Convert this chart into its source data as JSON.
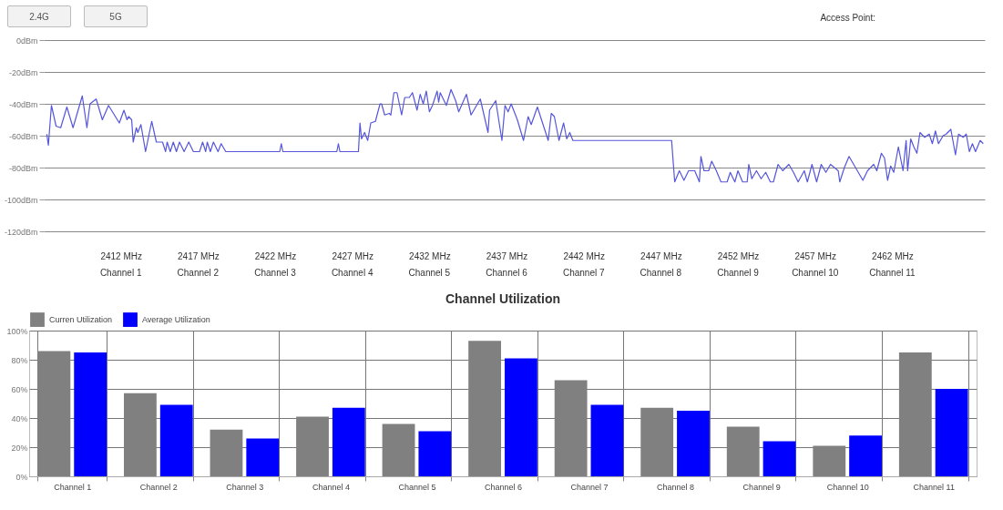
{
  "chart_data": [
    {
      "type": "other",
      "annotations": [
        "2.4G",
        "5G",
        "Access Point:"
      ]
    },
    {
      "type": "line",
      "xlim": [
        2407,
        2468
      ],
      "ylim": [
        -120,
        0
      ],
      "grid": "y",
      "xticks": [
        {
          "value": 2412,
          "label": "2412 MHz"
        },
        {
          "value": 2417,
          "label": "2417 MHz"
        },
        {
          "value": 2422,
          "label": "2422 MHz"
        },
        {
          "value": 2427,
          "label": "2427 MHz"
        },
        {
          "value": 2432,
          "label": "2432 MHz"
        },
        {
          "value": 2437,
          "label": "2437 MHz"
        },
        {
          "value": 2442,
          "label": "2442 MHz"
        },
        {
          "value": 2447,
          "label": "2447 MHz"
        },
        {
          "value": 2452,
          "label": "2452 MHz"
        },
        {
          "value": 2457,
          "label": "2457 MHz"
        },
        {
          "value": 2462,
          "label": "2462 MHz"
        }
      ],
      "annotations": [
        "Channel 1",
        "Channel 2",
        "Channel 3",
        "Channel 4",
        "Channel 5",
        "Channel 6",
        "Channel 7",
        "Channel 8",
        "Channel 9",
        "Channel 10",
        "Channel 11"
      ],
      "yticks": [
        {
          "value": 0,
          "label": "0dBm"
        },
        {
          "value": -20,
          "label": "-20dBm"
        },
        {
          "value": -40,
          "label": "-40dBm"
        },
        {
          "value": -60,
          "label": "-60dBm"
        },
        {
          "value": -80,
          "label": "-80dBm"
        },
        {
          "value": -100,
          "label": "-100dBm"
        },
        {
          "value": -120,
          "label": "-120dBm"
        }
      ],
      "x": [
        2407.2,
        2407.3,
        2407.5,
        2407.8,
        2408.1,
        2408.5,
        2408.9,
        2409.5,
        2409.8,
        2410.0,
        2410.4,
        2410.8,
        2411.2,
        2411.9,
        2412.2,
        2412.4,
        2412.5,
        2412.7,
        2412.8,
        2413.0,
        2413.1,
        2413.3,
        2413.6,
        2414.0,
        2414.3,
        2414.7,
        2414.9,
        2415.0,
        2415.2,
        2415.4,
        2415.6,
        2415.8,
        2416.1,
        2416.4,
        2416.7,
        2417.1,
        2417.3,
        2417.5,
        2417.6,
        2417.8,
        2418.0,
        2418.3,
        2418.5,
        2418.8,
        2422.3,
        2422.4,
        2422.5,
        2426.0,
        2426.1,
        2426.2,
        2427.4,
        2427.5,
        2427.6,
        2427.8,
        2428.0,
        2428.2,
        2428.5,
        2428.8,
        2428.9,
        2429.1,
        2429.4,
        2429.5,
        2429.7,
        2429.9,
        2430.2,
        2430.4,
        2430.7,
        2430.9,
        2431.2,
        2431.4,
        2431.6,
        2431.8,
        2432.0,
        2432.2,
        2432.5,
        2432.6,
        2432.7,
        2433.1,
        2433.4,
        2433.7,
        2433.9,
        2434.4,
        2434.7,
        2435.3,
        2435.8,
        2435.9,
        2436.3,
        2436.7,
        2436.9,
        2437.1,
        2437.3,
        2437.7,
        2438.1,
        2438.4,
        2438.6,
        2439.0,
        2439.2,
        2439.7,
        2439.9,
        2440.1,
        2440.4,
        2440.7,
        2440.9,
        2441.1,
        2441.3,
        2447.7,
        2447.9,
        2448.2,
        2448.5,
        2448.8,
        2449.2,
        2449.5,
        2449.6,
        2449.8,
        2450.1,
        2450.3,
        2450.6,
        2450.9,
        2451.3,
        2451.5,
        2451.8,
        2452.0,
        2452.3,
        2452.6,
        2452.7,
        2452.9,
        2453.2,
        2453.5,
        2453.8,
        2454.1,
        2454.3,
        2454.6,
        2454.9,
        2455.3,
        2455.6,
        2455.9,
        2456.3,
        2456.5,
        2456.8,
        2457.1,
        2457.4,
        2457.7,
        2458.0,
        2458.5,
        2458.6,
        2458.9,
        2459.2,
        2459.5,
        2460.1,
        2460.4,
        2460.8,
        2461.0,
        2461.3,
        2461.5,
        2461.7,
        2461.9,
        2462.1,
        2462.4,
        2462.7,
        2462.9,
        2463.0,
        2463.2,
        2463.4,
        2463.6,
        2463.8,
        2464.1,
        2464.4,
        2464.6,
        2464.8,
        2465.0,
        2465.3,
        2465.5,
        2465.8,
        2466.1,
        2466.3,
        2466.6,
        2466.8,
        2467.0,
        2467.2,
        2467.4,
        2467.7,
        2467.9
      ],
      "series": [
        {
          "color": "#5555dd",
          "values": [
            -59,
            -66,
            -41,
            -54,
            -55,
            -42,
            -55,
            -35,
            -55,
            -40,
            -37,
            -50,
            -41,
            -52,
            -44,
            -50,
            -48,
            -50,
            -64,
            -55,
            -58,
            -53,
            -70,
            -51,
            -64,
            -64,
            -70,
            -64,
            -70,
            -64,
            -70,
            -64,
            -70,
            -64,
            -70,
            -70,
            -64,
            -70,
            -64,
            -70,
            -64,
            -70,
            -65,
            -70,
            -70,
            -65,
            -70,
            -70,
            -65,
            -70,
            -70,
            -52,
            -62,
            -58,
            -63,
            -52,
            -51,
            -40,
            -40,
            -47,
            -46,
            -47,
            -33,
            -33,
            -47,
            -36,
            -36,
            -33,
            -44,
            -34,
            -40,
            -32,
            -45,
            -41,
            -32,
            -39,
            -33,
            -41,
            -31,
            -38,
            -45,
            -34,
            -47,
            -37,
            -58,
            -44,
            -38,
            -63,
            -41,
            -45,
            -40,
            -50,
            -63,
            -48,
            -53,
            -42,
            -48,
            -63,
            -46,
            -48,
            -63,
            -52,
            -62,
            -58,
            -63,
            -63,
            -89,
            -82,
            -88,
            -82,
            -82,
            -89,
            -73,
            -82,
            -82,
            -76,
            -82,
            -89,
            -89,
            -83,
            -89,
            -82,
            -89,
            -89,
            -78,
            -87,
            -82,
            -87,
            -83,
            -89,
            -89,
            -78,
            -82,
            -78,
            -83,
            -89,
            -82,
            -89,
            -78,
            -89,
            -78,
            -83,
            -78,
            -82,
            -89,
            -80,
            -73,
            -78,
            -88,
            -82,
            -78,
            -82,
            -71,
            -74,
            -88,
            -79,
            -83,
            -67,
            -82,
            -63,
            -82,
            -62,
            -67,
            -71,
            -58,
            -61,
            -59,
            -65,
            -57,
            -65,
            -60,
            -59,
            -56,
            -72,
            -59,
            -61,
            -59,
            -70,
            -65,
            -70,
            -63,
            -65
          ]
        }
      ]
    },
    {
      "type": "bar",
      "title": "Channel Utilization",
      "legend": "top",
      "grid": true,
      "ylim": [
        0,
        100
      ],
      "yticks": [
        {
          "value": 0,
          "label": "0%"
        },
        {
          "value": 20,
          "label": "20%"
        },
        {
          "value": 40,
          "label": "40%"
        },
        {
          "value": 60,
          "label": "60%"
        },
        {
          "value": 80,
          "label": "80%"
        },
        {
          "value": 100,
          "label": "100%"
        }
      ],
      "categories": [
        "Channel 1",
        "Channel 2",
        "Channel 3",
        "Channel 4",
        "Channel 5",
        "Channel 6",
        "Channel 7",
        "Channel 8",
        "Channel 9",
        "Channel 10",
        "Channel 11"
      ],
      "series": [
        {
          "name": "Curren Utilization",
          "color": "#808080",
          "values": [
            86,
            57,
            32,
            41,
            36,
            93,
            66,
            47,
            34,
            21,
            85
          ]
        },
        {
          "name": "Average Utilization",
          "color": "#0000ff",
          "values": [
            85,
            49,
            26,
            47,
            31,
            81,
            49,
            45,
            24,
            28,
            60
          ]
        }
      ]
    }
  ]
}
